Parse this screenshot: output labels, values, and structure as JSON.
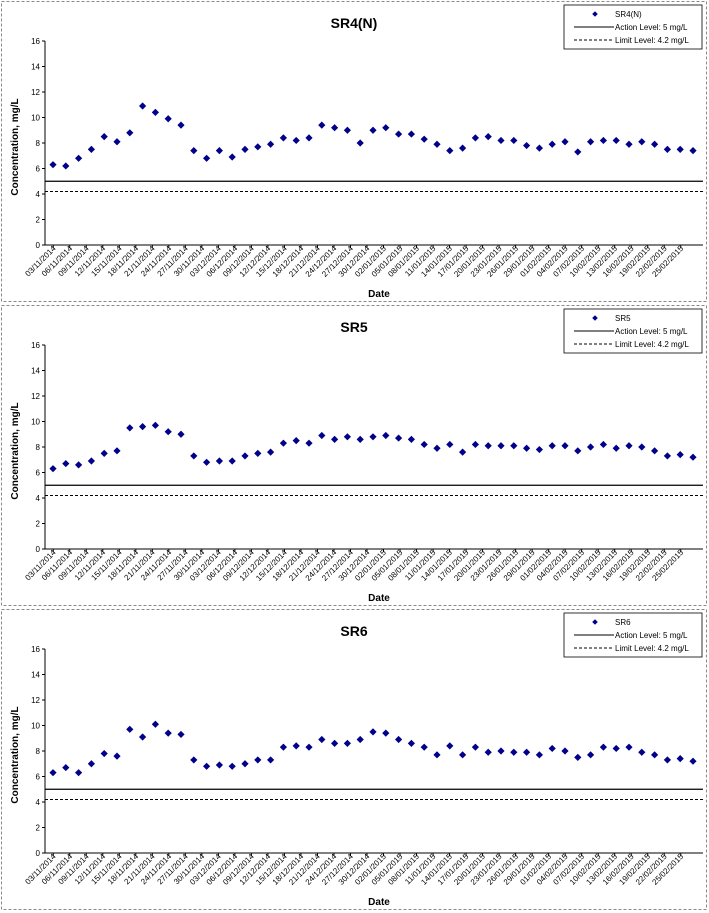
{
  "chart_data": [
    {
      "type": "scatter",
      "title": "SR4(N)",
      "xlabel": "Date",
      "ylabel": "Concentration, mg/L",
      "ylim": [
        0,
        16
      ],
      "yticks": [
        0,
        2,
        4,
        6,
        8,
        10,
        12,
        14,
        16
      ],
      "grid": false,
      "legend_position": "top-right",
      "x_tick_labels": [
        "03/11/2014",
        "06/11/2014",
        "09/11/2014",
        "12/11/2014",
        "15/11/2014",
        "18/11/2014",
        "21/11/2014",
        "24/11/2014",
        "27/11/2014",
        "30/11/2014",
        "03/12/2014",
        "06/12/2014",
        "09/12/2014",
        "12/12/2014",
        "15/12/2014",
        "18/12/2014",
        "21/12/2014",
        "24/12/2014",
        "27/12/2014",
        "30/12/2014",
        "02/01/2015",
        "05/01/2015",
        "08/01/2015",
        "11/01/2015",
        "14/01/2015",
        "17/01/2015",
        "20/01/2015",
        "23/01/2015",
        "26/01/2015",
        "29/01/2015",
        "01/02/2015",
        "04/02/2015",
        "07/02/2015",
        "10/02/2015",
        "13/02/2015",
        "16/02/2015",
        "19/02/2015",
        "22/02/2015",
        "25/02/2015"
      ],
      "series": [
        {
          "name": "SR4(N)",
          "marker": "diamond",
          "color": "#00008B",
          "values": [
            6.3,
            6.2,
            6.8,
            7.5,
            8.5,
            8.1,
            8.8,
            10.9,
            10.4,
            9.9,
            9.4,
            7.4,
            6.8,
            7.4,
            6.9,
            7.5,
            7.7,
            7.9,
            8.4,
            8.2,
            8.4,
            9.4,
            9.2,
            9.0,
            8.0,
            9.0,
            9.2,
            8.7,
            8.7,
            8.3,
            7.9,
            7.4,
            7.6,
            8.4,
            8.5,
            8.2,
            8.2,
            7.8,
            7.6,
            7.9,
            8.1,
            7.3,
            8.1,
            8.2,
            8.2,
            7.9,
            8.1,
            7.9,
            7.5,
            7.5,
            7.4
          ]
        },
        {
          "name": "Action Level: 5 mg/L",
          "type": "line",
          "value": 5,
          "style": "solid",
          "color": "#000000"
        },
        {
          "name": "Limit Level: 4.2 mg/L",
          "type": "line",
          "value": 4.2,
          "style": "dashed",
          "color": "#000000"
        }
      ]
    },
    {
      "type": "scatter",
      "title": "SR5",
      "xlabel": "Date",
      "ylabel": "Concentration, mg/L",
      "ylim": [
        0,
        16
      ],
      "yticks": [
        0,
        2,
        4,
        6,
        8,
        10,
        12,
        14,
        16
      ],
      "grid": false,
      "legend_position": "top-right",
      "x_tick_labels": [
        "03/11/2014",
        "06/11/2014",
        "09/11/2014",
        "12/11/2014",
        "15/11/2014",
        "18/11/2014",
        "21/11/2014",
        "24/11/2014",
        "27/11/2014",
        "30/11/2014",
        "03/12/2014",
        "06/12/2014",
        "09/12/2014",
        "12/12/2014",
        "15/12/2014",
        "18/12/2014",
        "21/12/2014",
        "24/12/2014",
        "27/12/2014",
        "30/12/2014",
        "02/01/2015",
        "05/01/2015",
        "08/01/2015",
        "11/01/2015",
        "14/01/2015",
        "17/01/2015",
        "20/01/2015",
        "23/01/2015",
        "26/01/2015",
        "29/01/2015",
        "01/02/2015",
        "04/02/2015",
        "07/02/2015",
        "10/02/2015",
        "13/02/2015",
        "16/02/2015",
        "19/02/2015",
        "22/02/2015",
        "25/02/2015"
      ],
      "series": [
        {
          "name": "SR5",
          "marker": "diamond",
          "color": "#00008B",
          "values": [
            6.3,
            6.7,
            6.6,
            6.9,
            7.5,
            7.7,
            9.5,
            9.6,
            9.7,
            9.2,
            9.0,
            7.3,
            6.8,
            6.9,
            6.9,
            7.3,
            7.5,
            7.6,
            8.3,
            8.5,
            8.3,
            8.9,
            8.6,
            8.8,
            8.6,
            8.8,
            8.9,
            8.7,
            8.6,
            8.2,
            7.9,
            8.2,
            7.6,
            8.2,
            8.1,
            8.1,
            8.1,
            7.9,
            7.8,
            8.1,
            8.1,
            7.7,
            8.0,
            8.2,
            7.9,
            8.1,
            8.0,
            7.7,
            7.3,
            7.4,
            7.2
          ]
        },
        {
          "name": "Action Level: 5 mg/L",
          "type": "line",
          "value": 5,
          "style": "solid",
          "color": "#000000"
        },
        {
          "name": "Limit Level: 4.2 mg/L",
          "type": "line",
          "value": 4.2,
          "style": "dashed",
          "color": "#000000"
        }
      ]
    },
    {
      "type": "scatter",
      "title": "SR6",
      "xlabel": "Date",
      "ylabel": "Concentration, mg/L",
      "ylim": [
        0,
        16
      ],
      "yticks": [
        0,
        2,
        4,
        6,
        8,
        10,
        12,
        14,
        16
      ],
      "grid": false,
      "legend_position": "top-right",
      "x_tick_labels": [
        "03/11/2014",
        "06/11/2014",
        "09/11/2014",
        "12/11/2014",
        "15/11/2014",
        "18/11/2014",
        "21/11/2014",
        "24/11/2014",
        "27/11/2014",
        "30/11/2014",
        "03/12/2014",
        "06/12/2014",
        "09/12/2014",
        "12/12/2014",
        "15/12/2014",
        "18/12/2014",
        "21/12/2014",
        "24/12/2014",
        "27/12/2014",
        "30/12/2014",
        "02/01/2015",
        "05/01/2015",
        "08/01/2015",
        "11/01/2015",
        "14/01/2015",
        "17/01/2015",
        "20/01/2015",
        "23/01/2015",
        "26/01/2015",
        "29/01/2015",
        "01/02/2015",
        "04/02/2015",
        "07/02/2015",
        "10/02/2015",
        "13/02/2015",
        "16/02/2015",
        "19/02/2015",
        "22/02/2015",
        "25/02/2015"
      ],
      "series": [
        {
          "name": "SR6",
          "marker": "diamond",
          "color": "#00008B",
          "values": [
            6.3,
            6.7,
            6.3,
            7.0,
            7.8,
            7.6,
            9.7,
            9.1,
            10.1,
            9.4,
            9.3,
            7.3,
            6.8,
            6.9,
            6.8,
            7.0,
            7.3,
            7.3,
            8.3,
            8.4,
            8.3,
            8.9,
            8.6,
            8.6,
            8.9,
            9.5,
            9.4,
            8.9,
            8.6,
            8.3,
            7.7,
            8.4,
            7.7,
            8.3,
            7.9,
            8.0,
            7.9,
            7.9,
            7.7,
            8.2,
            8.0,
            7.5,
            7.7,
            8.3,
            8.2,
            8.3,
            7.9,
            7.7,
            7.3,
            7.4,
            7.2
          ]
        },
        {
          "name": "Action Level: 5 mg/L",
          "type": "line",
          "value": 5,
          "style": "solid",
          "color": "#000000"
        },
        {
          "name": "Limit Level: 4.2 mg/L",
          "type": "line",
          "value": 4.2,
          "style": "dashed",
          "color": "#000000"
        }
      ]
    }
  ]
}
